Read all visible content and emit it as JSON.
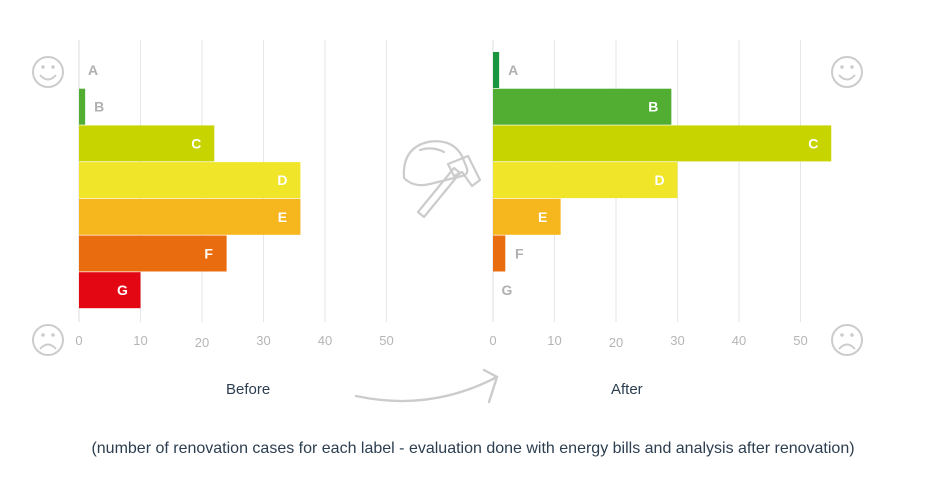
{
  "footnote": "(number of renovation cases for each label - evaluation done with energy bills and analysis after renovation)",
  "chart_data": [
    {
      "type": "bar",
      "orientation": "horizontal",
      "title": "Before",
      "categories": [
        "A",
        "B",
        "C",
        "D",
        "E",
        "F",
        "G"
      ],
      "values": [
        0,
        1,
        22,
        36,
        36,
        24,
        10
      ],
      "xticks": [
        0,
        10,
        20,
        30,
        40,
        50
      ],
      "xlim": [
        0,
        50
      ],
      "grid": true,
      "colors": [
        "#1a9641",
        "#52ae32",
        "#c8d400",
        "#f0e529",
        "#f6b61e",
        "#e96c0e",
        "#e30613"
      ]
    },
    {
      "type": "bar",
      "orientation": "horizontal",
      "title": "After",
      "categories": [
        "A",
        "B",
        "C",
        "D",
        "E",
        "F",
        "G"
      ],
      "values": [
        1,
        29,
        55,
        30,
        11,
        2,
        0
      ],
      "xticks": [
        0,
        10,
        20,
        30,
        40,
        50
      ],
      "xlim": [
        0,
        50
      ],
      "grid": true,
      "colors": [
        "#1a9641",
        "#52ae32",
        "#c8d400",
        "#f0e529",
        "#f6b61e",
        "#e96c0e",
        "#e30613"
      ]
    }
  ],
  "icons": [
    "smiley-icon",
    "frowny-icon",
    "renovation-hammer-helmet-icon",
    "curved-arrow-icon"
  ]
}
